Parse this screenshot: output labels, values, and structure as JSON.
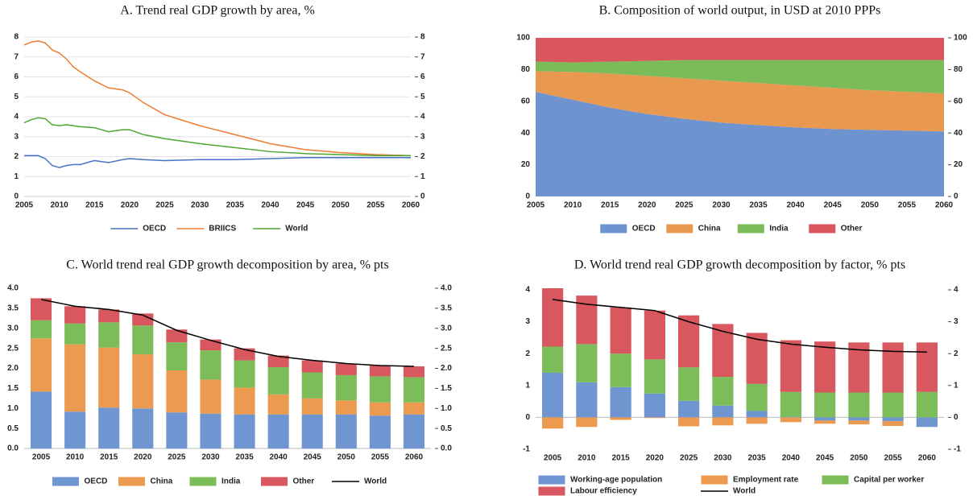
{
  "chart_data": [
    {
      "type": "line",
      "title": "A. Trend real GDP growth by area, %",
      "x": [
        2005,
        2006,
        2007,
        2008,
        2009,
        2010,
        2011,
        2012,
        2013,
        2015,
        2017,
        2019,
        2020,
        2022,
        2025,
        2030,
        2035,
        2040,
        2045,
        2050,
        2055,
        2060
      ],
      "series": [
        {
          "name": "OECD",
          "color": "#4472c4",
          "values": [
            2.05,
            2.05,
            2.05,
            1.9,
            1.55,
            1.45,
            1.55,
            1.6,
            1.6,
            1.8,
            1.7,
            1.85,
            1.9,
            1.85,
            1.8,
            1.85,
            1.85,
            1.9,
            1.95,
            1.95,
            1.95,
            1.95
          ]
        },
        {
          "name": "BRIICS",
          "color": "#ed7d31",
          "values": [
            7.6,
            7.75,
            7.8,
            7.7,
            7.35,
            7.2,
            6.9,
            6.5,
            6.25,
            5.8,
            5.45,
            5.35,
            5.2,
            4.7,
            4.1,
            3.55,
            3.1,
            2.65,
            2.35,
            2.2,
            2.1,
            2.05
          ]
        },
        {
          "name": "World",
          "color": "#4ea72e",
          "values": [
            3.7,
            3.85,
            3.95,
            3.9,
            3.6,
            3.55,
            3.6,
            3.55,
            3.5,
            3.45,
            3.25,
            3.35,
            3.35,
            3.1,
            2.9,
            2.65,
            2.45,
            2.25,
            2.15,
            2.1,
            2.05,
            2.05
          ]
        }
      ],
      "xlim": [
        2005,
        2060
      ],
      "xticks": [
        2005,
        2010,
        2015,
        2020,
        2025,
        2030,
        2035,
        2040,
        2045,
        2050,
        2055,
        2060
      ],
      "ylim": [
        0,
        8
      ],
      "yticks": [
        0,
        1,
        2,
        3,
        4,
        5,
        6,
        7,
        8
      ],
      "y2lim": [
        0,
        8
      ],
      "y2ticks": [
        0,
        1,
        2,
        3,
        4,
        5,
        6,
        7,
        8
      ],
      "grid": true
    },
    {
      "type": "area",
      "title": "B. Composition of world output, in USD at 2010 PPPs",
      "x": [
        2005,
        2010,
        2015,
        2020,
        2025,
        2030,
        2035,
        2040,
        2045,
        2050,
        2055,
        2060
      ],
      "series": [
        {
          "name": "OECD",
          "color": "#6f93cf",
          "values": [
            66,
            61,
            56,
            52,
            49,
            46.5,
            45,
            43.5,
            42.5,
            42,
            41.5,
            41
          ]
        },
        {
          "name": "China",
          "color": "#e9984f",
          "values": [
            13,
            17.5,
            21.5,
            24,
            25.5,
            26.5,
            26.5,
            26.5,
            26,
            25,
            24.5,
            24
          ]
        },
        {
          "name": "India",
          "color": "#7bbb58",
          "values": [
            6,
            6,
            7.5,
            9.5,
            11.5,
            13,
            14.5,
            16,
            17.5,
            19,
            20,
            21
          ]
        },
        {
          "name": "Other",
          "color": "#d9565d",
          "values": [
            15,
            15.5,
            15,
            14.5,
            14,
            14,
            14,
            14,
            14,
            14,
            14,
            14
          ]
        }
      ],
      "xlim": [
        2005,
        2060
      ],
      "xticks": [
        2005,
        2010,
        2015,
        2020,
        2025,
        2030,
        2035,
        2040,
        2045,
        2050,
        2055,
        2060
      ],
      "ylim": [
        0,
        100
      ],
      "yticks": [
        0,
        20,
        40,
        60,
        80,
        100
      ],
      "y2lim": [
        0,
        100
      ],
      "y2ticks": [
        0,
        20,
        40,
        60,
        80,
        100
      ],
      "grid": false
    },
    {
      "type": "bar",
      "title": "C. World trend real GDP growth decomposition by area, % pts",
      "categories": [
        "2005",
        "2010",
        "2015",
        "2020",
        "2025",
        "2030",
        "2035",
        "2040",
        "2045",
        "2050",
        "2055",
        "2060"
      ],
      "series": [
        {
          "name": "OECD",
          "color": "#6f96d1",
          "values": [
            1.42,
            0.92,
            1.02,
            1.0,
            0.9,
            0.87,
            0.85,
            0.85,
            0.85,
            0.85,
            0.82,
            0.85
          ]
        },
        {
          "name": "China",
          "color": "#eb9a4f",
          "values": [
            1.33,
            1.68,
            1.5,
            1.35,
            1.05,
            0.85,
            0.67,
            0.5,
            0.4,
            0.35,
            0.33,
            0.3
          ]
        },
        {
          "name": "India",
          "color": "#7cbd5a",
          "values": [
            0.45,
            0.52,
            0.63,
            0.72,
            0.7,
            0.73,
            0.68,
            0.68,
            0.65,
            0.63,
            0.65,
            0.63
          ]
        },
        {
          "name": "Other",
          "color": "#d9575e",
          "values": [
            0.55,
            0.43,
            0.32,
            0.3,
            0.32,
            0.27,
            0.3,
            0.29,
            0.3,
            0.29,
            0.27,
            0.27
          ]
        },
        {
          "name": "World",
          "color": "#000000",
          "type": "line",
          "values": [
            3.72,
            3.55,
            3.47,
            3.33,
            2.95,
            2.7,
            2.47,
            2.3,
            2.2,
            2.12,
            2.07,
            2.05
          ]
        }
      ],
      "ylim": [
        0,
        4
      ],
      "yticks": [
        {
          "value": 0,
          "label": "0.0"
        },
        {
          "value": 0.5,
          "label": "0.5"
        },
        {
          "value": 1,
          "label": "1.0"
        },
        {
          "value": 1.5,
          "label": "1.5"
        },
        {
          "value": 2,
          "label": "2.0"
        },
        {
          "value": 2.5,
          "label": "2.5"
        },
        {
          "value": 3,
          "label": "3.0"
        },
        {
          "value": 3.5,
          "label": "3.5"
        },
        {
          "value": 4,
          "label": "4.0"
        }
      ],
      "y2lim": [
        0,
        4
      ],
      "y2ticks": [
        {
          "value": 0,
          "label": "0.0"
        },
        {
          "value": 0.5,
          "label": "0.5"
        },
        {
          "value": 1,
          "label": "1.0"
        },
        {
          "value": 1.5,
          "label": "1.5"
        },
        {
          "value": 2,
          "label": "2.0"
        },
        {
          "value": 2.5,
          "label": "2.5"
        },
        {
          "value": 3,
          "label": "3.0"
        },
        {
          "value": 3.5,
          "label": "3.5"
        },
        {
          "value": 4,
          "label": "4.0"
        }
      ],
      "stacked": true,
      "grid": false
    },
    {
      "type": "bar",
      "title": "D. World trend real GDP growth decomposition by factor, % pts",
      "categories": [
        "2005",
        "2010",
        "2015",
        "2020",
        "2025",
        "2030",
        "2035",
        "2040",
        "2045",
        "2050",
        "2055",
        "2060"
      ],
      "series": [
        {
          "name": "Working-age population",
          "color": "#6f96d1",
          "values": [
            1.4,
            1.1,
            0.95,
            0.75,
            0.52,
            0.37,
            0.2,
            0.02,
            -0.1,
            -0.1,
            -0.12,
            -0.3
          ]
        },
        {
          "name": "Employment rate",
          "color": "#eb9a4f",
          "values": [
            -0.35,
            -0.3,
            -0.08,
            -0.02,
            -0.28,
            -0.25,
            -0.2,
            -0.15,
            -0.1,
            -0.12,
            -0.15,
            0
          ]
        },
        {
          "name": "Capital per worker",
          "color": "#7cbd5a",
          "values": [
            0.82,
            1.2,
            1.05,
            1.07,
            1.05,
            0.9,
            0.85,
            0.78,
            0.78,
            0.78,
            0.78,
            0.8
          ]
        },
        {
          "name": "Labour efficiency",
          "color": "#d9575e",
          "values": [
            1.83,
            1.52,
            1.45,
            1.53,
            1.63,
            1.66,
            1.6,
            1.62,
            1.6,
            1.57,
            1.57,
            1.55
          ]
        },
        {
          "name": "World",
          "color": "#000000",
          "type": "line",
          "values": [
            3.7,
            3.55,
            3.45,
            3.35,
            3.0,
            2.7,
            2.45,
            2.3,
            2.2,
            2.12,
            2.07,
            2.05
          ]
        }
      ],
      "ylim": [
        -1,
        4
      ],
      "yticks": [
        -1,
        0,
        1,
        2,
        3,
        4
      ],
      "y2lim": [
        -1,
        4
      ],
      "y2ticks": [
        -1,
        0,
        1,
        2,
        3,
        4
      ],
      "stacked": true,
      "grid": false
    }
  ]
}
